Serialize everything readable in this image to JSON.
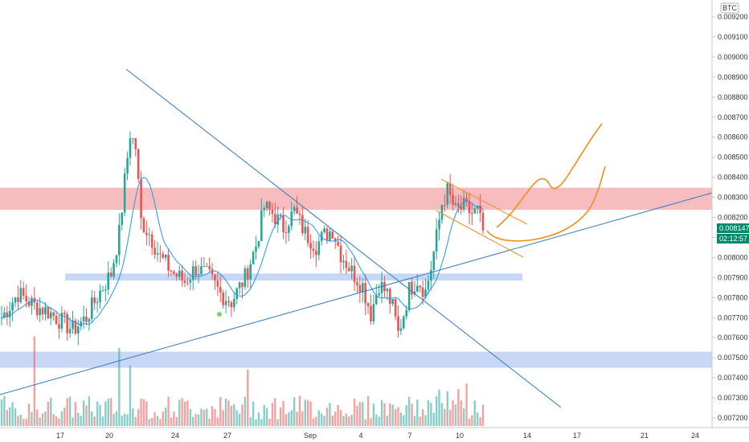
{
  "chart_data": {
    "type": "candlestick",
    "currency": "BTC",
    "ylim": [
      0.00719,
      0.0093
    ],
    "y_ticks": [
      "0.009200",
      "0.009100",
      "0.009000",
      "0.008900",
      "0.008800",
      "0.008700",
      "0.008600",
      "0.008500",
      "0.008400",
      "0.008300",
      "0.008200",
      "0.008100",
      "0.008000",
      "0.007900",
      "0.007800",
      "0.007700",
      "0.007600",
      "0.007500",
      "0.007400",
      "0.007300",
      "0.007200"
    ],
    "x_ticks": [
      "17",
      "20",
      "24",
      "27",
      "Sep",
      "4",
      "7",
      "10",
      "14",
      "17",
      "21",
      "24"
    ],
    "last_price": "0.008147",
    "countdown": "02:12:57",
    "zones": [
      {
        "name": "resistance",
        "from": 0.008238,
        "to": 0.008348,
        "color": "#f4a6a8"
      },
      {
        "name": "support-mid",
        "from": 0.007885,
        "to": 0.00792,
        "color": "#b9cdf3"
      },
      {
        "name": "support-low",
        "from": 0.00745,
        "to": 0.00753,
        "color": "#b9cdf3"
      }
    ],
    "colors": {
      "up": "#26a69a",
      "down": "#ef5350",
      "ma": "#2196f3",
      "trendline": "#2d7ac7",
      "projection": "#f28c1e",
      "price_badge": "#00896b"
    }
  }
}
